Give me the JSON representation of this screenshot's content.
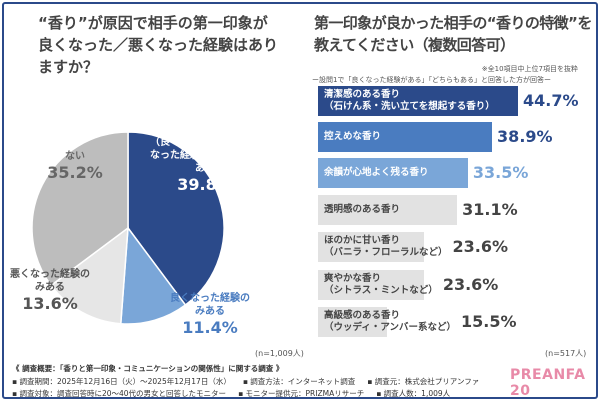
{
  "chart_data": [
    {
      "type": "pie",
      "title": "“香り”が原因で相手の第一印象が良くなった／悪くなった経験はありますか？",
      "slices": [
        {
          "label": "（良くなった経験も悪くなった経験も）どちらもある",
          "value": 39.8,
          "display": "39.8%",
          "color": "#2b4a8a"
        },
        {
          "label": "良くなった経験のみある",
          "value": 11.4,
          "display": "11.4%",
          "color": "#7aa6d8"
        },
        {
          "label": "悪くなった経験のみある",
          "value": 13.6,
          "display": "13.6%",
          "color": "#e6e6e6"
        },
        {
          "label": "ない",
          "value": 35.2,
          "display": "35.2%",
          "color": "#bdbdbd"
        }
      ],
      "n": "(n=1,009人)"
    },
    {
      "type": "bar",
      "orientation": "horizontal",
      "title": "第一印象が良かった相手の“香りの特徴”を教えてください（複数回答可）",
      "note1": "※全10項目中上位7項目を抜粋",
      "note2": "ー設問1で「良くなった経験がある」「どちらもある」と回答した方が回答ー",
      "categories": [
        "清潔感のある香り\n（石けん系・洗い立てを想起する香り）",
        "控えめな香り",
        "余韻が心地よく残る香り",
        "透明感のある香り",
        "ほのかに甘い香り\n（バニラ・フローラルなど）",
        "爽やかな香り\n（シトラス・ミントなど）",
        "高級感のある香り\n（ウッディ・アンバー系など）"
      ],
      "values": [
        44.7,
        38.9,
        33.5,
        31.1,
        23.6,
        23.6,
        15.5
      ],
      "display": [
        "44.7%",
        "38.9%",
        "33.5%",
        "31.1%",
        "23.6%",
        "23.6%",
        "15.5%"
      ],
      "colors": [
        "#2b4a8a",
        "#4a7cc0",
        "#7aa6d8",
        "#e2e2e2",
        "#e2e2e2",
        "#e2e2e2",
        "#e2e2e2"
      ],
      "n": "(n=517人)"
    }
  ],
  "footer": {
    "summary": "《 調査概要：「香りと第一印象・コミュニケーションの関係性」に関する調査 》",
    "period": "▪ 調査期間：2025年12月16日（火）～2025年12月17日（水）",
    "method": "▪ 調査方法：インターネット調査",
    "source": "▪ 調査元：株式会社プリアンファ",
    "target": "▪ 調査対象：調査回答時に20～40代の男女と回答したモニター",
    "provider": "▪ モニター提供元：PRIZMAリサーチ",
    "count": "▪ 調査人数：1,009人",
    "logo": "PREANFA 20"
  }
}
